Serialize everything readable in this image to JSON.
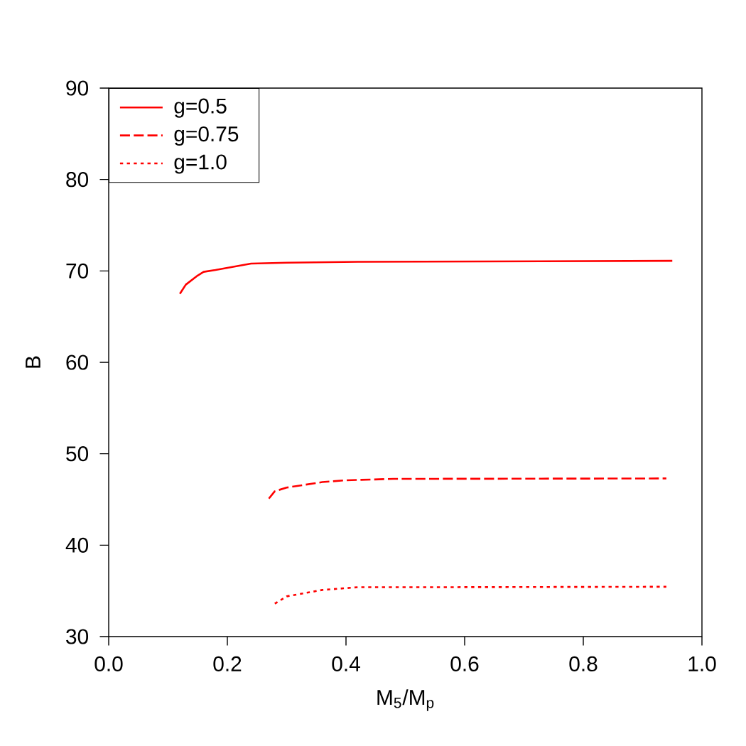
{
  "chart_data": {
    "type": "line",
    "xlabel": "M$_{5}$/M$_{p}$",
    "ylabel": "B",
    "xlim": [
      0.0,
      1.0
    ],
    "ylim": [
      30,
      90
    ],
    "xticks": [
      {
        "value": 0.0,
        "label": "0.0"
      },
      {
        "value": 0.2,
        "label": "0.2"
      },
      {
        "value": 0.4,
        "label": "0.4"
      },
      {
        "value": 0.6,
        "label": "0.6"
      },
      {
        "value": 0.8,
        "label": "0.8"
      },
      {
        "value": 1.0,
        "label": "1.0"
      }
    ],
    "yticks": [
      30,
      40,
      50,
      60,
      70,
      80,
      90
    ],
    "legend": "top left",
    "grid": false,
    "marker": "none",
    "series": [
      {
        "name": "g=0.5",
        "color": "#ff0000",
        "line_style": "solid",
        "x": [
          0.12,
          0.13,
          0.15,
          0.16,
          0.18,
          0.24,
          0.3,
          0.42,
          0.95
        ],
        "values": [
          67.5,
          68.5,
          69.5,
          69.9,
          70.1,
          70.8,
          70.9,
          71.0,
          71.1
        ]
      },
      {
        "name": "g=0.75",
        "color": "#ff0000",
        "line_style": "dashed",
        "x": [
          0.27,
          0.28,
          0.3,
          0.36,
          0.4,
          0.48,
          0.94
        ],
        "values": [
          45.1,
          45.9,
          46.3,
          46.9,
          47.1,
          47.25,
          47.3
        ]
      },
      {
        "name": "g=1.0",
        "color": "#ff0000",
        "line_style": "dotted",
        "x": [
          0.28,
          0.3,
          0.36,
          0.42,
          0.54,
          0.94
        ],
        "values": [
          33.6,
          34.4,
          35.1,
          35.4,
          35.4,
          35.45
        ]
      }
    ]
  }
}
